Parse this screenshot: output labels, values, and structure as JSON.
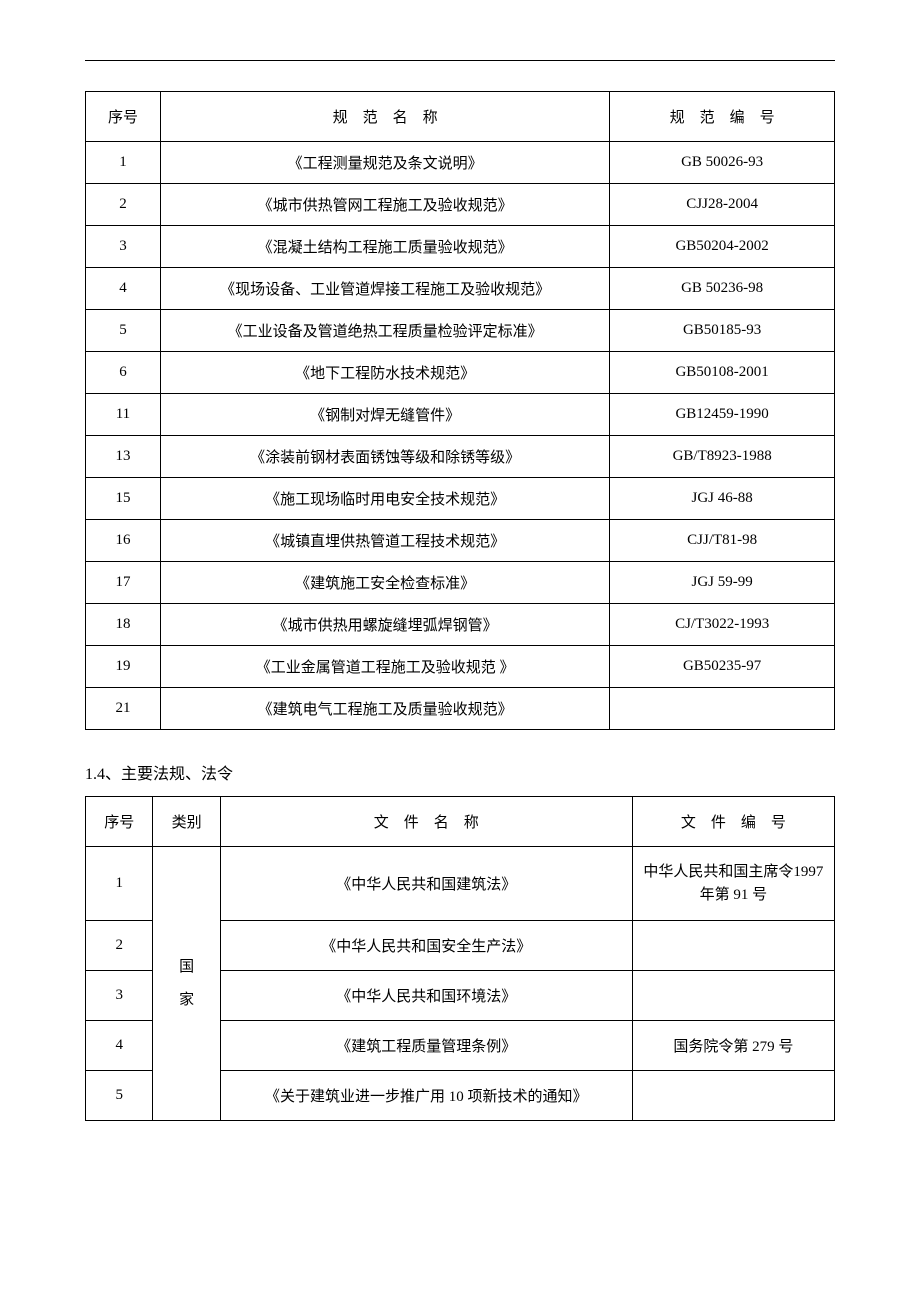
{
  "table1": {
    "headers": {
      "seq": "序号",
      "name": "规　范　名　称",
      "code": "规　范　编　号"
    },
    "rows": [
      {
        "seq": "1",
        "name": "《工程测量规范及条文说明》",
        "code": "GB 50026-93"
      },
      {
        "seq": "2",
        "name": "《城市供热管网工程施工及验收规范》",
        "code": "CJJ28-2004"
      },
      {
        "seq": "3",
        "name": "《混凝土结构工程施工质量验收规范》",
        "code": "GB50204-2002"
      },
      {
        "seq": "4",
        "name": "《现场设备、工业管道焊接工程施工及验收规范》",
        "code": "GB 50236-98"
      },
      {
        "seq": "5",
        "name": "《工业设备及管道绝热工程质量检验评定标准》",
        "code": "GB50185-93"
      },
      {
        "seq": "6",
        "name": "《地下工程防水技术规范》",
        "code": "GB50108-2001"
      },
      {
        "seq": "11",
        "name": "《钢制对焊无缝管件》",
        "code": "GB12459-1990"
      },
      {
        "seq": "13",
        "name": "《涂装前钢材表面锈蚀等级和除锈等级》",
        "code": "GB/T8923-1988"
      },
      {
        "seq": "15",
        "name": "《施工现场临时用电安全技术规范》",
        "code": "JGJ 46-88"
      },
      {
        "seq": "16",
        "name": "《城镇直埋供热管道工程技术规范》",
        "code": "CJJ/T81-98"
      },
      {
        "seq": "17",
        "name": "《建筑施工安全检查标准》",
        "code": "JGJ 59-99"
      },
      {
        "seq": "18",
        "name": "《城市供热用螺旋缝埋弧焊钢管》",
        "code": "CJ/T3022-1993"
      },
      {
        "seq": "19",
        "name": "《工业金属管道工程施工及验收规范 》",
        "code": "GB50235-97"
      },
      {
        "seq": "21",
        "name": "《建筑电气工程施工及质量验收规范》",
        "code": ""
      }
    ]
  },
  "section_title": "1.4、主要法规、法令",
  "table2": {
    "headers": {
      "seq": "序号",
      "cat": "类别",
      "name": "文　件　名　称",
      "code": "文　件　编　号"
    },
    "category": "国\n家",
    "rows": [
      {
        "seq": "1",
        "name": "《中华人民共和国建筑法》",
        "code": "中华人民共和国主席令1997 年第 91 号"
      },
      {
        "seq": "2",
        "name": "《中华人民共和国安全生产法》",
        "code": ""
      },
      {
        "seq": "3",
        "name": "《中华人民共和国环境法》",
        "code": ""
      },
      {
        "seq": "4",
        "name": "《建筑工程质量管理条例》",
        "code": "国务院令第 279 号"
      },
      {
        "seq": "5",
        "name": "《关于建筑业进一步推广用 10 项新技术的通知》",
        "code": ""
      }
    ]
  }
}
